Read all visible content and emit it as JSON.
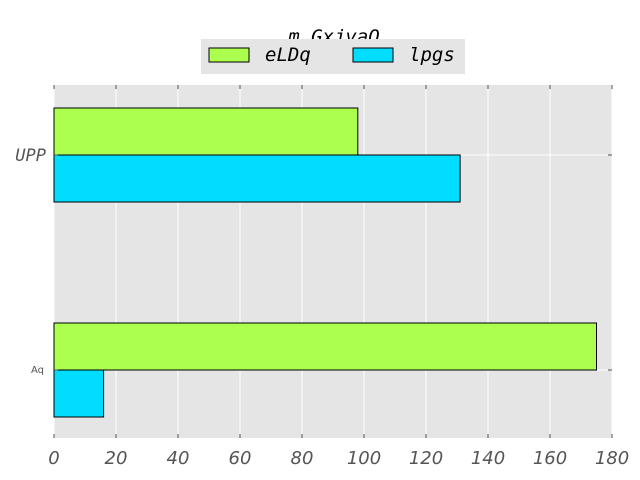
{
  "chart_data": {
    "type": "bar",
    "orientation": "horizontal",
    "title": "m_GxjvaQ",
    "categories": [
      "UPP",
      "Aq"
    ],
    "series": [
      {
        "name": "eLDq",
        "values": [
          98,
          175
        ],
        "color": "#adff4f"
      },
      {
        "name": "lpgs",
        "values": [
          131,
          16
        ],
        "color": "#00ddff"
      }
    ],
    "xticks": [
      "0",
      "20",
      "40",
      "60",
      "80",
      "100",
      "120",
      "140",
      "160",
      "180"
    ],
    "xlim": [
      0,
      180
    ],
    "grid": true,
    "legend_position": "top-center",
    "background_color": "#e5e5e5",
    "grid_color": "#ffffff"
  }
}
